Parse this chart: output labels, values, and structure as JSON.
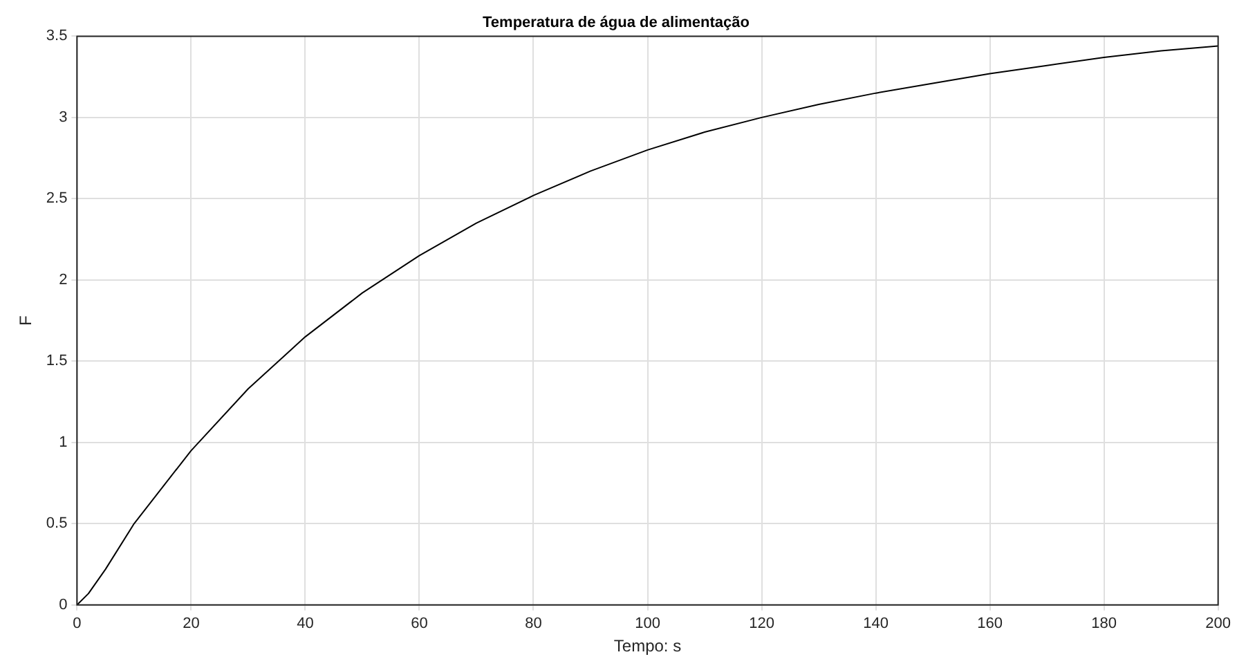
{
  "chart_data": {
    "type": "line",
    "title": "Temperatura de água de alimentação",
    "xlabel": "Tempo: s",
    "ylabel": "F",
    "series": [
      {
        "color": "#000000",
        "x": [
          0,
          2,
          5,
          10,
          20,
          30,
          40,
          50,
          60,
          70,
          80,
          90,
          100,
          110,
          120,
          130,
          140,
          150,
          160,
          170,
          180,
          190,
          200
        ],
        "values": [
          0,
          0.07,
          0.22,
          0.5,
          0.95,
          1.33,
          1.65,
          1.92,
          2.15,
          2.35,
          2.52,
          2.67,
          2.8,
          2.91,
          3.0,
          3.08,
          3.15,
          3.21,
          3.27,
          3.32,
          3.37,
          3.41,
          3.44
        ]
      }
    ],
    "xlim": [
      0,
      200
    ],
    "xticks": [
      0,
      20,
      40,
      60,
      80,
      100,
      120,
      140,
      160,
      180,
      200
    ],
    "ylim": [
      0,
      3.5
    ],
    "yticks": [
      0,
      0.5,
      1,
      1.5,
      2,
      2.5,
      3,
      3.5
    ],
    "grid": true,
    "legend": false,
    "marker": "none",
    "line_style": "solid"
  }
}
